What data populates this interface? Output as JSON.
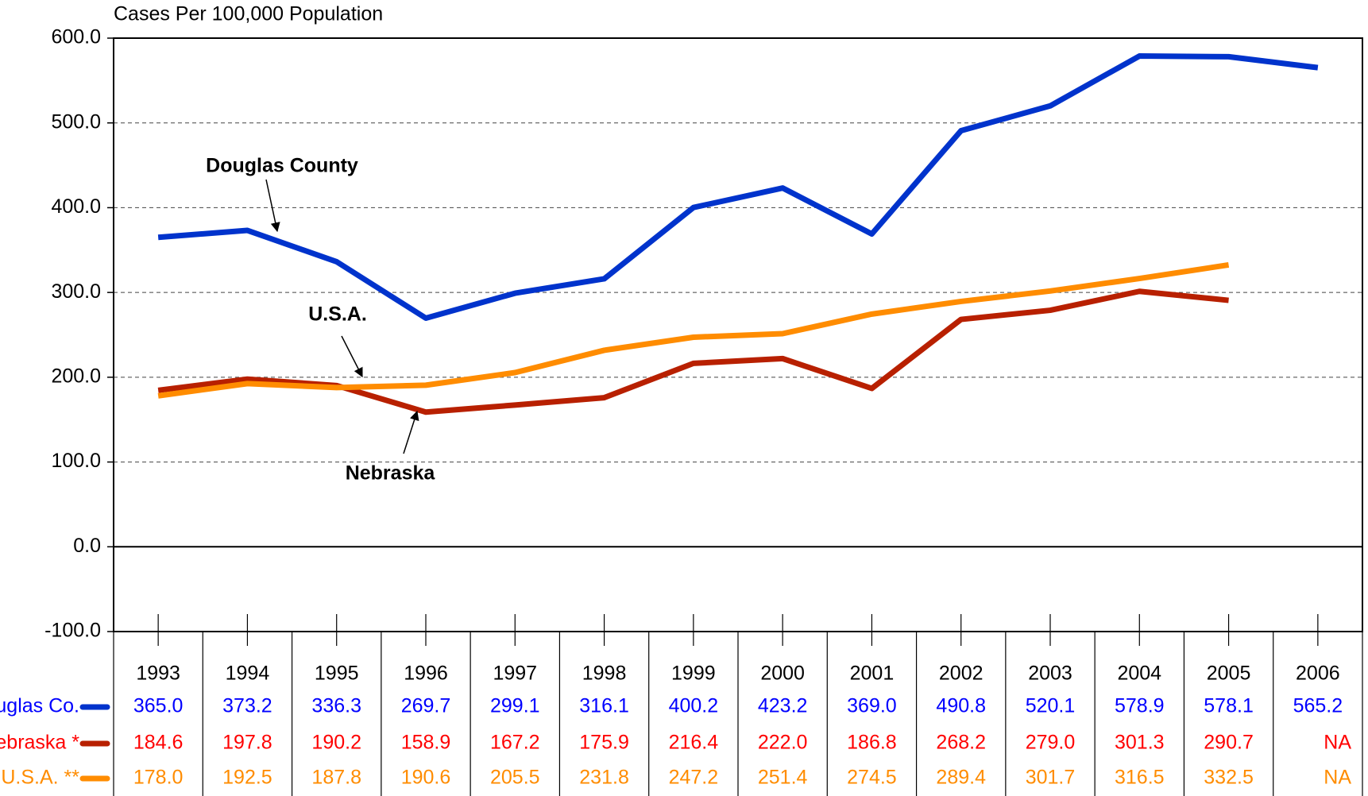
{
  "chart_data": {
    "type": "line",
    "y_axis_label": "Cases Per 100,000 Population",
    "categories": [
      "1993",
      "1994",
      "1995",
      "1996",
      "1997",
      "1998",
      "1999",
      "2000",
      "2001",
      "2002",
      "2003",
      "2004",
      "2005",
      "2006"
    ],
    "series": [
      {
        "name": "Douglas Co.",
        "color": "#0033cc",
        "text_color": "#0000ff",
        "values": [
          365.0,
          373.2,
          336.3,
          269.7,
          299.1,
          316.1,
          400.2,
          423.2,
          369.0,
          490.8,
          520.1,
          578.9,
          578.1,
          565.2
        ],
        "value_labels": [
          "365.0",
          "373.2",
          "336.3",
          "269.7",
          "299.1",
          "316.1",
          "400.2",
          "423.2",
          "369.0",
          "490.8",
          "520.1",
          "578.9",
          "578.1",
          "565.2"
        ]
      },
      {
        "name": "Nebraska *",
        "color": "#b82000",
        "text_color": "#ff0000",
        "values": [
          184.6,
          197.8,
          190.2,
          158.9,
          167.2,
          175.9,
          216.4,
          222.0,
          186.8,
          268.2,
          279.0,
          301.3,
          290.7,
          null
        ],
        "value_labels": [
          "184.6",
          "197.8",
          "190.2",
          "158.9",
          "167.2",
          "175.9",
          "216.4",
          "222.0",
          "186.8",
          "268.2",
          "279.0",
          "301.3",
          "290.7",
          "NA"
        ]
      },
      {
        "name": "U.S.A. **",
        "color": "#ff8c00",
        "text_color": "#ff8c00",
        "values": [
          178.0,
          192.5,
          187.8,
          190.6,
          205.5,
          231.8,
          247.2,
          251.4,
          274.5,
          289.4,
          301.7,
          316.5,
          332.5,
          null
        ],
        "value_labels": [
          "178.0",
          "192.5",
          "187.8",
          "190.6",
          "205.5",
          "231.8",
          "247.2",
          "251.4",
          "274.5",
          "289.4",
          "301.7",
          "316.5",
          "332.5",
          "NA"
        ]
      }
    ],
    "annotations": [
      "Douglas County",
      "U.S.A.",
      "Nebraska"
    ],
    "ylim": [
      -100,
      600
    ],
    "yticks": [
      {
        "value": -100,
        "label": "-100.0"
      },
      {
        "value": 0,
        "label": "0.0"
      },
      {
        "value": 100,
        "label": "100.0"
      },
      {
        "value": 200,
        "label": "200.0"
      },
      {
        "value": 300,
        "label": "300.0"
      },
      {
        "value": 400,
        "label": "400.0"
      },
      {
        "value": 500,
        "label": "500.0"
      },
      {
        "value": 600,
        "label": "600.0"
      }
    ],
    "grid": true
  }
}
